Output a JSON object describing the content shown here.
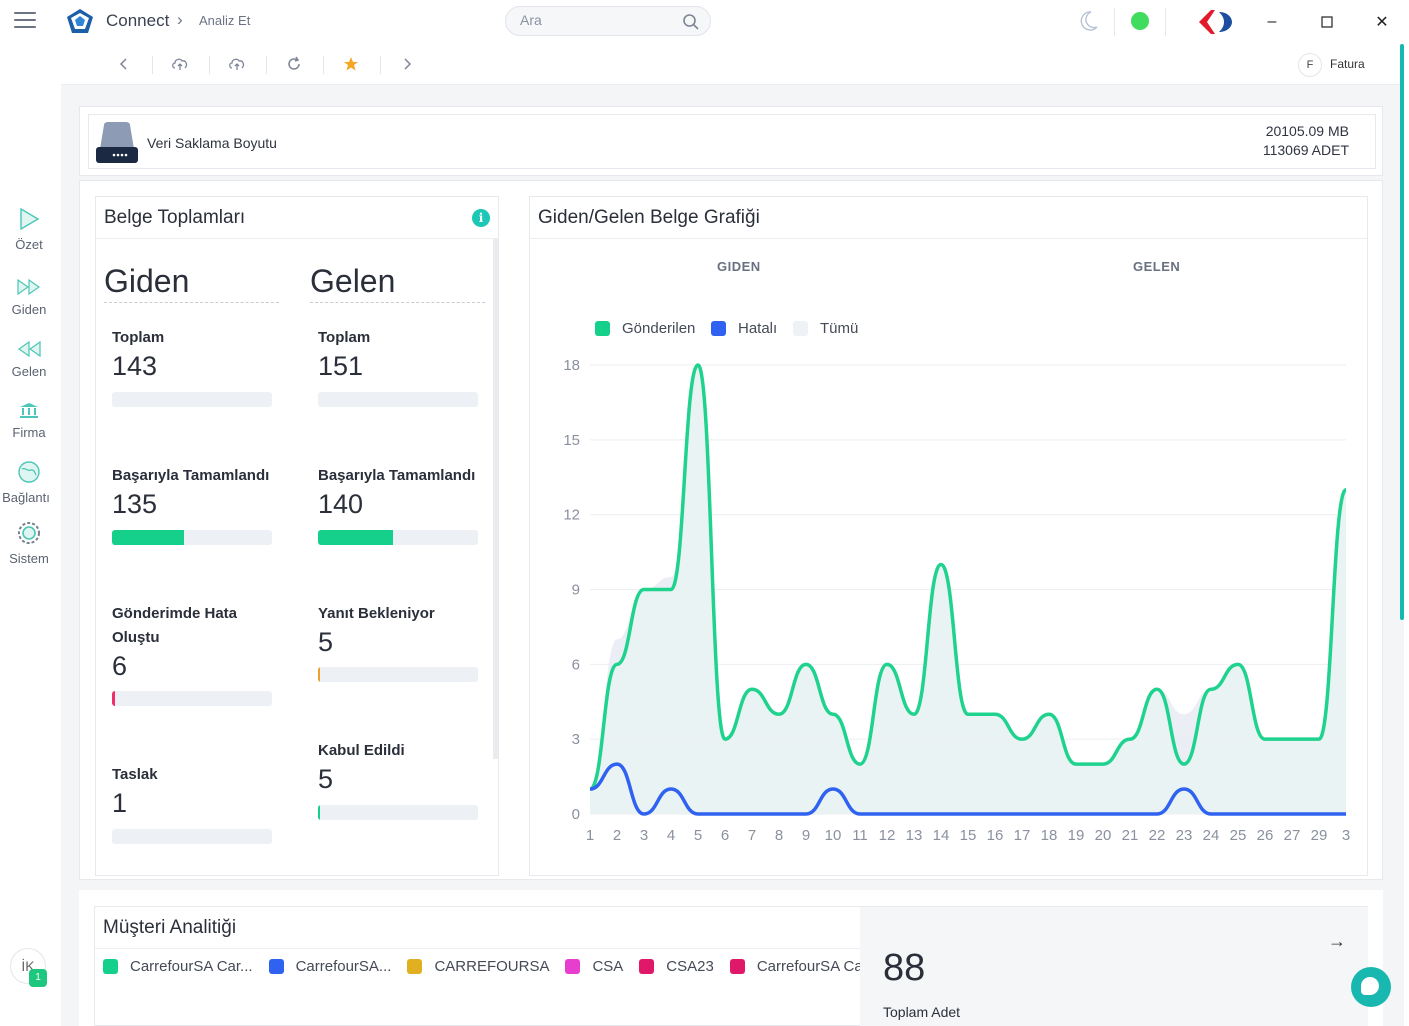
{
  "titlebar": {
    "app_title": "Connect",
    "breadcrumb": "Analiz Et",
    "search_placeholder": "Ara",
    "status_color": "#3fdc5d"
  },
  "rail": {
    "items": [
      {
        "label": "Özet",
        "icon": "play-icon"
      },
      {
        "label": "Giden",
        "icon": "fast-forward-icon"
      },
      {
        "label": "Gelen",
        "icon": "rewind-icon"
      },
      {
        "label": "Firma",
        "icon": "building-icon"
      },
      {
        "label": "Bağlantı",
        "icon": "globe-icon"
      },
      {
        "label": "Sistem",
        "icon": "gear-icon"
      }
    ],
    "user_initials": "İK",
    "notification_count": "1"
  },
  "toolbar": {
    "icons": [
      "chevron-left-icon",
      "cloud-upload-icon",
      "upload-icon",
      "refresh-icon",
      "star-icon",
      "chevron-right-icon"
    ],
    "fatura_badge": "F",
    "fatura_label": "Fatura"
  },
  "storage": {
    "title": "Veri Saklama Boyutu",
    "size": "20105.09 MB",
    "count": "113069 ADET"
  },
  "belge": {
    "title": "Belge Toplamları",
    "giden": {
      "heading": "Giden",
      "metrics": [
        {
          "label": "Toplam",
          "value": "143",
          "fill": 0,
          "color": "#15d08a"
        },
        {
          "label": "Başarıyla Tamamlandı",
          "value": "135",
          "fill": 0.45,
          "color": "#15d08a"
        },
        {
          "label": "Gönderimde Hata Oluştu",
          "value": "6",
          "fill": 0.02,
          "color": "#ef2f6a"
        },
        {
          "label": "Taslak",
          "value": "1",
          "fill": 0,
          "color": "#15d08a"
        }
      ]
    },
    "gelen": {
      "heading": "Gelen",
      "metrics": [
        {
          "label": "Toplam",
          "value": "151",
          "fill": 0,
          "color": "#15d08a"
        },
        {
          "label": "Başarıyla Tamamlandı",
          "value": "140",
          "fill": 0.47,
          "color": "#15d08a"
        },
        {
          "label": "Yanıt Bekleniyor",
          "value": "5",
          "fill": 0.01,
          "color": "#f0a030"
        },
        {
          "label": "Kabul Edildi",
          "value": "5",
          "fill": 0.01,
          "color": "#15d08a"
        }
      ]
    }
  },
  "chart_card": {
    "title": "Giden/Gelen Belge Grafiği",
    "tab_giden": "GIDEN",
    "tab_gelen": "GELEN"
  },
  "chart_data": {
    "type": "line",
    "x": [
      "1",
      "2",
      "3",
      "4",
      "5",
      "6",
      "7",
      "8",
      "9",
      "10",
      "11",
      "12",
      "13",
      "14",
      "15",
      "16",
      "17",
      "18",
      "19",
      "20",
      "21",
      "22",
      "23",
      "24",
      "25",
      "26",
      "27",
      "29",
      "3"
    ],
    "ylim": [
      0,
      18
    ],
    "yticks": [
      0,
      3,
      6,
      9,
      12,
      15,
      18
    ],
    "legend": [
      "Gönderilen",
      "Hatalı",
      "Tümü"
    ],
    "series": [
      {
        "name": "Gönderilen",
        "color": "#1fd28e",
        "values": [
          1,
          6,
          9,
          9,
          18,
          3,
          5,
          4,
          6,
          4,
          2,
          6,
          4,
          10,
          4,
          4,
          3,
          4,
          2,
          2,
          3,
          5,
          2,
          5,
          6,
          3,
          3,
          3,
          13
        ]
      },
      {
        "name": "Hatalı",
        "color": "#2f62f0",
        "values": [
          1,
          2,
          0,
          1,
          0,
          0,
          0,
          0,
          0,
          1,
          0,
          0,
          0,
          0,
          0,
          0,
          0,
          0,
          0,
          0,
          0,
          0,
          1,
          0,
          0,
          0,
          0,
          0,
          0
        ]
      },
      {
        "name": "Tümü",
        "color": "#e8ecf3",
        "values": [
          1,
          7,
          9,
          9.5,
          18,
          3,
          5,
          4,
          6,
          4,
          2,
          6,
          4,
          10,
          4,
          4,
          3,
          4,
          2,
          2,
          3,
          5,
          4,
          5,
          6,
          3,
          3,
          3,
          13
        ]
      }
    ]
  },
  "musteri": {
    "title": "Müşteri Analitiği",
    "legend": [
      {
        "label": "CarrefourSA Car...",
        "color": "#15d08a"
      },
      {
        "label": "CarrefourSA...",
        "color": "#2f62f0"
      },
      {
        "label": "CARREFOURSA",
        "color": "#e0b020"
      },
      {
        "label": "CSA",
        "color": "#e83ed0"
      },
      {
        "label": "CSA23",
        "color": "#e0186a"
      },
      {
        "label": "CarrefourSA Ca",
        "color": "#e0186a"
      }
    ],
    "total": "88",
    "total_label": "Toplam Adet"
  }
}
